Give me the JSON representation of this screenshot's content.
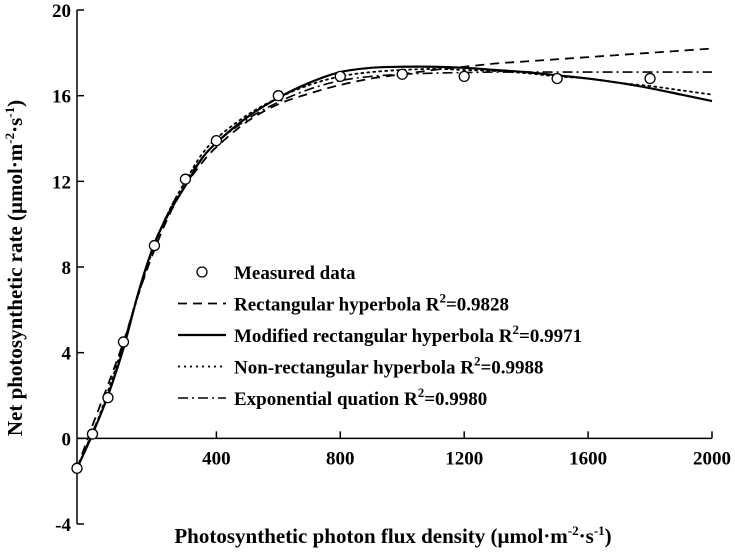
{
  "chart_data": {
    "type": "line",
    "xlabel_main": "Photosynthetic photon flux density (μmol·m",
    "xlabel_sup1": "-2",
    "xlabel_mid": "·s",
    "xlabel_sup2": "-1",
    "xlabel_end": ")",
    "ylabel_main": "Net photosynthetic rate (μmol·m",
    "ylabel_sup1": "-2",
    "ylabel_mid": "·s",
    "ylabel_sup2": "-1",
    "ylabel_end": ")",
    "xlim": [
      -50,
      2000
    ],
    "ylim": [
      -4,
      20
    ],
    "xticks": [
      400,
      800,
      1200,
      1600,
      2000
    ],
    "xtick_labels": [
      "400",
      "800",
      "1200",
      "1600",
      "2000"
    ],
    "yticks": [
      -4,
      0,
      4,
      8,
      12,
      16,
      20
    ],
    "ytick_labels": [
      "-4",
      "0",
      "4",
      "8",
      "12",
      "16",
      "20"
    ],
    "grid": false,
    "legend_position": "center-right",
    "measured": {
      "name": "Measured data",
      "x": [
        -50,
        0,
        50,
        100,
        200,
        300,
        400,
        600,
        800,
        1000,
        1200,
        1500,
        1800
      ],
      "y": [
        -1.4,
        0.2,
        1.9,
        4.5,
        9.0,
        12.1,
        13.9,
        16.0,
        16.9,
        17.0,
        16.9,
        16.8,
        16.8
      ]
    },
    "series": [
      {
        "name": "Rectangular hyperbola",
        "r2_prefix": "R",
        "r2_sup": "2",
        "r2_value": "=0.9828",
        "style": "dashed",
        "x": [
          -50,
          0,
          50,
          100,
          150,
          200,
          250,
          300,
          350,
          400,
          500,
          600,
          700,
          800,
          900,
          1000,
          1100,
          1200,
          1300,
          1400,
          1500,
          1600,
          1700,
          1800,
          1900,
          2000
        ],
        "y": [
          -1.4,
          0.6,
          2.5,
          4.5,
          6.8,
          8.8,
          10.5,
          11.8,
          12.8,
          13.6,
          14.8,
          15.6,
          16.1,
          16.5,
          16.8,
          17.0,
          17.2,
          17.35,
          17.5,
          17.6,
          17.7,
          17.8,
          17.9,
          18.0,
          18.1,
          18.2
        ]
      },
      {
        "name": "Modified rectangular hyperbola",
        "r2_prefix": "R",
        "r2_sup": "2",
        "r2_value": "=0.9971",
        "style": "solid",
        "x": [
          -50,
          0,
          50,
          100,
          150,
          200,
          250,
          300,
          350,
          400,
          500,
          600,
          700,
          800,
          900,
          1000,
          1100,
          1200,
          1300,
          1400,
          1500,
          1600,
          1700,
          1800,
          1900,
          2000
        ],
        "y": [
          -1.4,
          0.2,
          2.0,
          4.2,
          6.9,
          9.1,
          10.6,
          11.8,
          13.0,
          13.8,
          15.0,
          15.9,
          16.6,
          17.1,
          17.3,
          17.35,
          17.35,
          17.3,
          17.2,
          17.1,
          16.95,
          16.8,
          16.6,
          16.35,
          16.05,
          15.75
        ]
      },
      {
        "name": "Non-rectangular hyperbola",
        "r2_prefix": "R",
        "r2_sup": "2",
        "r2_value": "=0.9988",
        "style": "dotted",
        "x": [
          -50,
          0,
          50,
          100,
          150,
          200,
          250,
          300,
          350,
          400,
          500,
          600,
          700,
          800,
          900,
          1000,
          1100,
          1200,
          1300,
          1400,
          1500,
          1600,
          1700,
          1800,
          1900,
          2000
        ],
        "y": [
          -1.4,
          0.2,
          2.2,
          4.4,
          6.8,
          9.0,
          10.7,
          12.0,
          13.2,
          14.0,
          15.1,
          15.9,
          16.5,
          16.9,
          17.1,
          17.2,
          17.25,
          17.2,
          17.15,
          17.05,
          16.9,
          16.8,
          16.6,
          16.45,
          16.25,
          16.05
        ]
      },
      {
        "name": "Exponential quation",
        "r2_prefix": "R",
        "r2_sup": "2",
        "r2_value": "=0.9980",
        "style": "dashdot",
        "x": [
          -50,
          0,
          50,
          100,
          150,
          200,
          250,
          300,
          350,
          400,
          500,
          600,
          700,
          800,
          900,
          1000,
          1100,
          1200,
          1300,
          1400,
          1500,
          1600,
          1700,
          1800,
          1900,
          2000
        ],
        "y": [
          -1.4,
          0.3,
          2.0,
          4.4,
          6.9,
          9.1,
          10.7,
          12.0,
          13.0,
          13.8,
          14.9,
          15.7,
          16.3,
          16.7,
          16.9,
          17.0,
          17.05,
          17.08,
          17.1,
          17.1,
          17.1,
          17.1,
          17.1,
          17.1,
          17.1,
          17.1
        ]
      }
    ]
  }
}
